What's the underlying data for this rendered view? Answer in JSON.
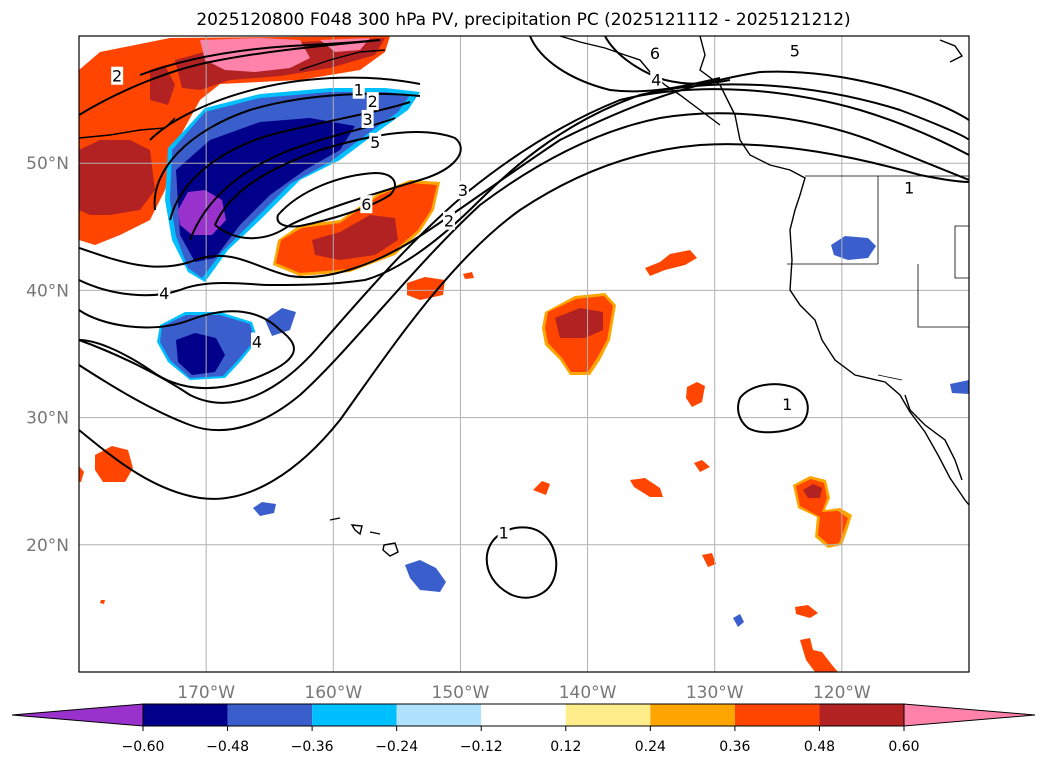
{
  "title": "2025120800 F048 300 hPa PV, precipitation PC (2025121112 - 2025121212)",
  "map": {
    "lon_range": [
      -180,
      -110
    ],
    "lat_range": [
      10,
      60
    ],
    "lon_ticks": [
      {
        "value": -170,
        "label": "170°W"
      },
      {
        "value": -160,
        "label": "160°W"
      },
      {
        "value": -150,
        "label": "150°W"
      },
      {
        "value": -140,
        "label": "140°W"
      },
      {
        "value": -130,
        "label": "130°W"
      },
      {
        "value": -120,
        "label": "120°W"
      }
    ],
    "lat_ticks": [
      {
        "value": 20,
        "label": "20°N"
      },
      {
        "value": 30,
        "label": "30°N"
      },
      {
        "value": 40,
        "label": "40°N"
      },
      {
        "value": 50,
        "label": "50°N"
      }
    ],
    "gridlines": true
  },
  "colorbar": {
    "levels": [
      "−0.60",
      "−0.48",
      "−0.36",
      "−0.24",
      "−0.12",
      "0.12",
      "0.24",
      "0.36",
      "0.48",
      "0.60"
    ],
    "colors": [
      "#9932cc",
      "#00008b",
      "#3a5fcd",
      "#00bfff",
      "#b0e2ff",
      "#ffffff",
      "#ffec8b",
      "#ffa500",
      "#ff4500",
      "#b22222",
      "#ff82ab"
    ]
  },
  "pv_contour_labels": [
    {
      "text": "2",
      "lon": -177.0,
      "lat": 56.8
    },
    {
      "text": "1",
      "lon": -158.0,
      "lat": 55.7
    },
    {
      "text": "2",
      "lon": -156.9,
      "lat": 54.8
    },
    {
      "text": "3",
      "lon": -157.3,
      "lat": 53.4
    },
    {
      "text": "5",
      "lon": -156.7,
      "lat": 51.6
    },
    {
      "text": "6",
      "lon": -157.4,
      "lat": 46.7
    },
    {
      "text": "3",
      "lon": -149.8,
      "lat": 47.8
    },
    {
      "text": "2",
      "lon": -150.9,
      "lat": 45.4
    },
    {
      "text": "4",
      "lon": -173.3,
      "lat": 39.7
    },
    {
      "text": "4",
      "lon": -166.0,
      "lat": 35.9
    },
    {
      "text": "6",
      "lon": -134.7,
      "lat": 58.6
    },
    {
      "text": "4",
      "lon": -134.6,
      "lat": 56.5
    },
    {
      "text": "5",
      "lon": -123.7,
      "lat": 58.8
    },
    {
      "text": "1",
      "lon": -114.7,
      "lat": 48.0
    },
    {
      "text": "1",
      "lon": -124.3,
      "lat": 31.0
    },
    {
      "text": "1",
      "lon": -146.6,
      "lat": 20.9
    }
  ]
}
